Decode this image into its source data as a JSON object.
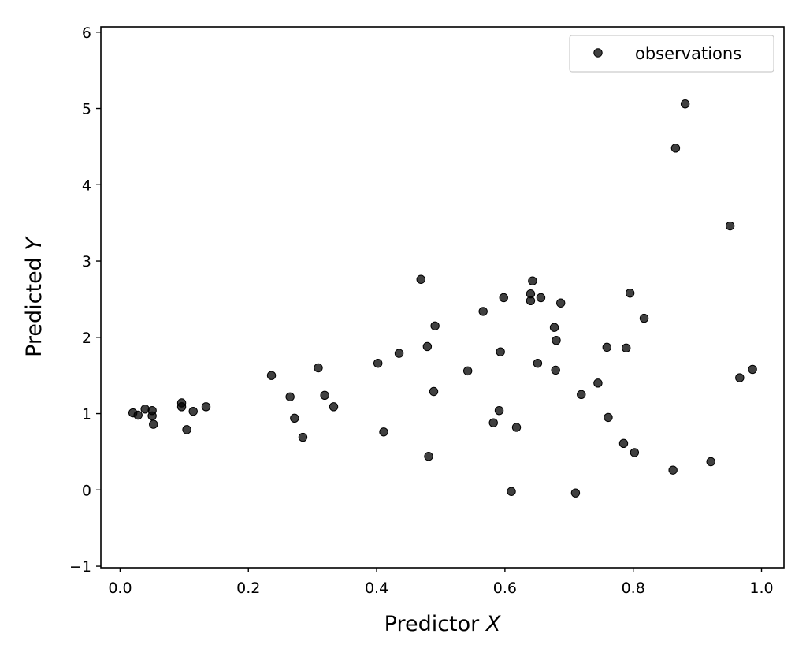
{
  "chart_data": {
    "type": "scatter",
    "xlabel_text": "Predictor ",
    "xlabel_var": "X",
    "ylabel_text": "Predicted ",
    "ylabel_var": "Y",
    "xlim": [
      -0.03,
      1.035
    ],
    "ylim": [
      -1.02,
      6.07
    ],
    "xticks": [
      0.0,
      0.2,
      0.4,
      0.6,
      0.8,
      1.0
    ],
    "xtick_labels": [
      "0.0",
      "0.2",
      "0.4",
      "0.6",
      "0.8",
      "1.0"
    ],
    "yticks": [
      -1,
      0,
      1,
      2,
      3,
      4,
      5,
      6
    ],
    "ytick_labels": [
      "−1",
      "0",
      "1",
      "2",
      "3",
      "4",
      "5",
      "6"
    ],
    "legend_position": "top-right",
    "grid": false,
    "marker_color": "#000000",
    "marker_alpha": 0.75,
    "series": [
      {
        "name": "observations",
        "points": [
          [
            0.02,
            1.01
          ],
          [
            0.028,
            0.98
          ],
          [
            0.039,
            1.06
          ],
          [
            0.05,
            1.04
          ],
          [
            0.05,
            0.97
          ],
          [
            0.052,
            0.86
          ],
          [
            0.096,
            1.14
          ],
          [
            0.096,
            1.09
          ],
          [
            0.104,
            0.79
          ],
          [
            0.114,
            1.03
          ],
          [
            0.134,
            1.09
          ],
          [
            0.236,
            1.5
          ],
          [
            0.265,
            1.22
          ],
          [
            0.272,
            0.94
          ],
          [
            0.285,
            0.69
          ],
          [
            0.309,
            1.6
          ],
          [
            0.319,
            1.24
          ],
          [
            0.333,
            1.09
          ],
          [
            0.402,
            1.66
          ],
          [
            0.411,
            0.76
          ],
          [
            0.435,
            1.79
          ],
          [
            0.469,
            2.76
          ],
          [
            0.479,
            1.88
          ],
          [
            0.481,
            0.44
          ],
          [
            0.489,
            1.29
          ],
          [
            0.491,
            2.15
          ],
          [
            0.542,
            1.56
          ],
          [
            0.566,
            2.34
          ],
          [
            0.582,
            0.88
          ],
          [
            0.591,
            1.04
          ],
          [
            0.593,
            1.81
          ],
          [
            0.598,
            2.52
          ],
          [
            0.61,
            -0.02
          ],
          [
            0.618,
            0.82
          ],
          [
            0.64,
            2.57
          ],
          [
            0.64,
            2.48
          ],
          [
            0.643,
            2.74
          ],
          [
            0.651,
            1.66
          ],
          [
            0.656,
            2.52
          ],
          [
            0.677,
            2.13
          ],
          [
            0.679,
            1.57
          ],
          [
            0.68,
            1.96
          ],
          [
            0.687,
            2.45
          ],
          [
            0.71,
            -0.04
          ],
          [
            0.719,
            1.25
          ],
          [
            0.745,
            1.4
          ],
          [
            0.759,
            1.87
          ],
          [
            0.761,
            0.95
          ],
          [
            0.785,
            0.61
          ],
          [
            0.789,
            1.86
          ],
          [
            0.795,
            2.58
          ],
          [
            0.802,
            0.49
          ],
          [
            0.817,
            2.25
          ],
          [
            0.862,
            0.26
          ],
          [
            0.866,
            4.48
          ],
          [
            0.881,
            5.06
          ],
          [
            0.921,
            0.37
          ],
          [
            0.951,
            3.46
          ],
          [
            0.966,
            1.47
          ],
          [
            0.986,
            1.58
          ]
        ]
      }
    ]
  }
}
